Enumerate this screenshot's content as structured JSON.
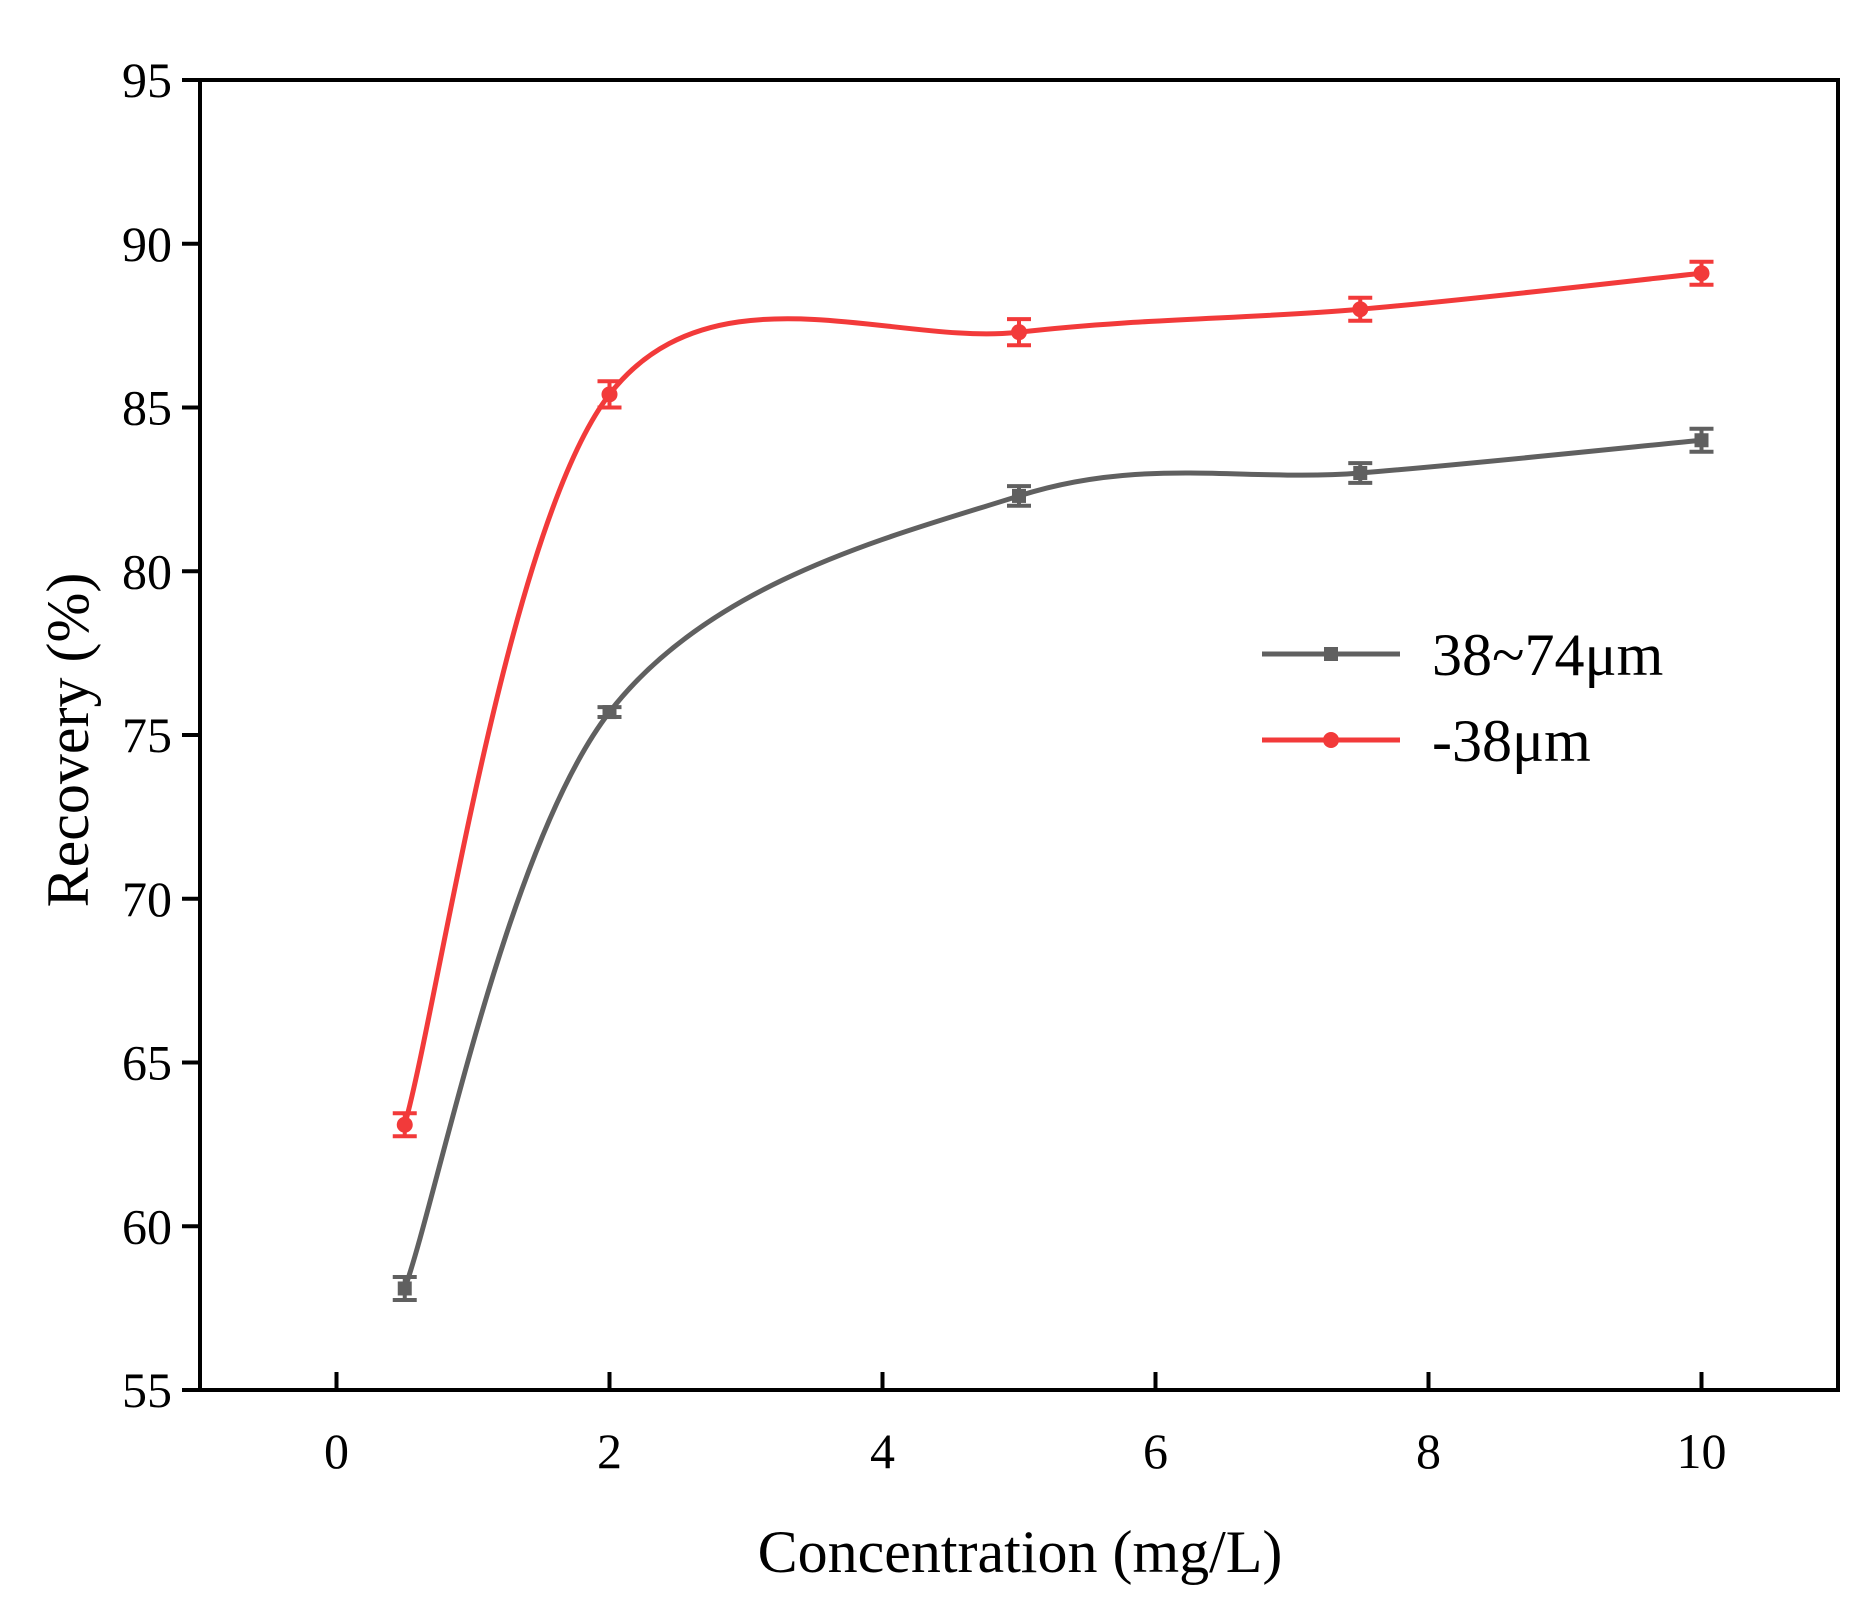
{
  "chart_data": {
    "type": "line",
    "title": "",
    "xlabel": "Concentration (mg/L)",
    "ylabel": "Recovery (%)",
    "xlim": [
      -1,
      11
    ],
    "ylim": [
      55,
      95
    ],
    "x_ticks": [
      0,
      2,
      4,
      6,
      8,
      10
    ],
    "y_ticks": [
      55,
      60,
      65,
      70,
      75,
      80,
      85,
      90,
      95
    ],
    "grid": false,
    "legend_position": "right",
    "series": [
      {
        "name": "38~74μm",
        "color": "#606060",
        "marker": "square",
        "x": [
          0.5,
          2,
          5,
          7.5,
          10
        ],
        "values": [
          58.1,
          75.7,
          82.3,
          83.0,
          84.0
        ],
        "errors": [
          0.35,
          0.15,
          0.3,
          0.3,
          0.35
        ]
      },
      {
        "name": "-38μm",
        "color": "#f23a3a",
        "marker": "circle",
        "x": [
          0.5,
          2,
          5,
          7.5,
          10
        ],
        "values": [
          63.1,
          85.4,
          87.3,
          88.0,
          89.1
        ],
        "errors": [
          0.35,
          0.4,
          0.4,
          0.35,
          0.35
        ]
      }
    ]
  }
}
